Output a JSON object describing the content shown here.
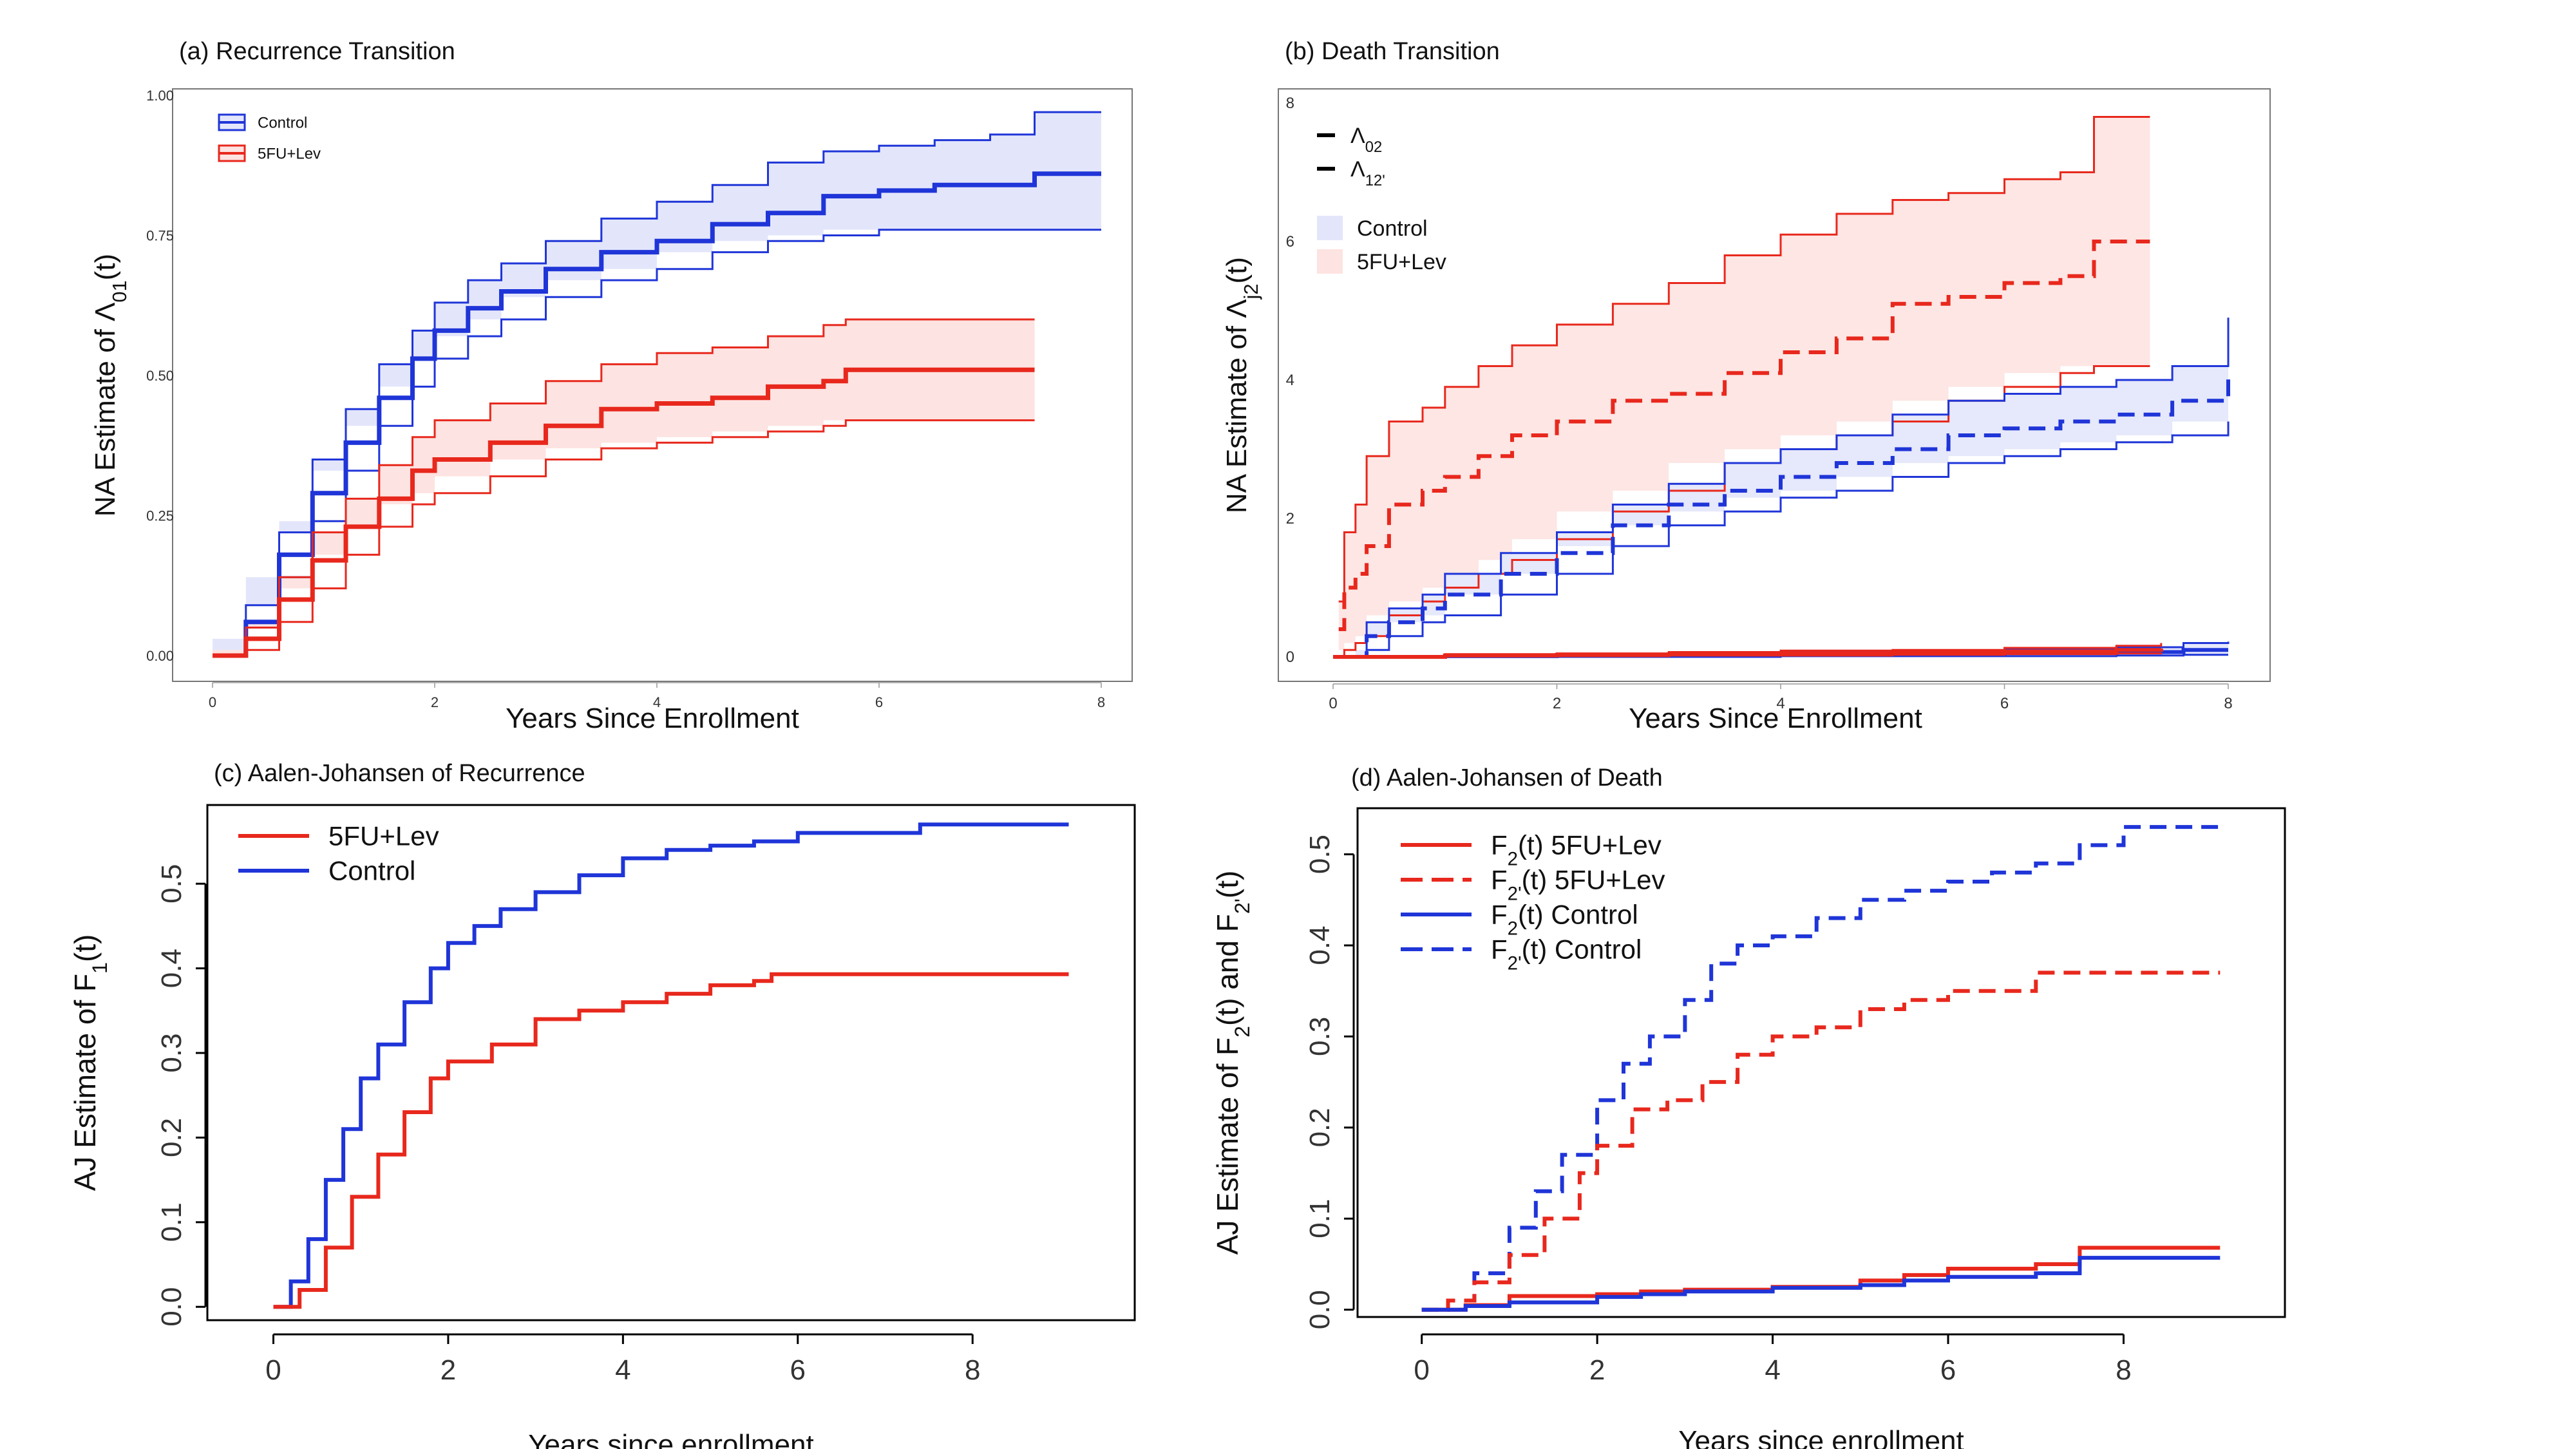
{
  "colors": {
    "control": "#1f35d8",
    "treatment": "#e8281d",
    "control_fill": "#e3e6fb",
    "treatment_fill": "#fde3e1"
  },
  "chart_data": [
    {
      "id": "a",
      "type": "line",
      "title": "(a) Recurrence Transition",
      "xlabel": "Years Since Enrollment",
      "ylabel_main": "NA Estimate of Λ",
      "ylabel_sub": "01",
      "ylabel_suffix": "(t)",
      "xlim": [
        0,
        8
      ],
      "ylim": [
        0,
        1
      ],
      "xticks": [
        0,
        2,
        4,
        6,
        8
      ],
      "yticks": [
        0,
        0.25,
        0.5,
        0.75,
        1
      ],
      "ytick_labels": [
        "0.00",
        "0.25",
        "0.50",
        "0.75",
        "1.00"
      ],
      "legend": [
        {
          "label": "Control",
          "series": "control",
          "kind": "band"
        },
        {
          "label": "5FU+Lev",
          "series": "treatment",
          "kind": "band"
        }
      ],
      "series": [
        {
          "name": "Control",
          "color_key": "control",
          "dash": false,
          "step": true,
          "band": true,
          "x": [
            0,
            0.3,
            0.6,
            0.9,
            1.2,
            1.5,
            1.8,
            2.0,
            2.3,
            2.6,
            3.0,
            3.5,
            4.0,
            4.5,
            5.0,
            5.5,
            6.0,
            6.5,
            7.0,
            7.4,
            8.0
          ],
          "y": [
            0,
            0.06,
            0.18,
            0.29,
            0.38,
            0.46,
            0.53,
            0.58,
            0.62,
            0.65,
            0.69,
            0.72,
            0.74,
            0.77,
            0.79,
            0.82,
            0.83,
            0.84,
            0.84,
            0.86,
            0.86
          ],
          "lower": [
            0,
            0.03,
            0.14,
            0.24,
            0.33,
            0.41,
            0.48,
            0.53,
            0.57,
            0.6,
            0.64,
            0.67,
            0.69,
            0.72,
            0.74,
            0.75,
            0.76,
            0.76,
            0.76,
            0.76,
            0.76
          ],
          "upper": [
            0,
            0.09,
            0.22,
            0.35,
            0.44,
            0.52,
            0.58,
            0.63,
            0.67,
            0.7,
            0.74,
            0.78,
            0.81,
            0.84,
            0.88,
            0.9,
            0.91,
            0.92,
            0.93,
            0.97,
            0.97
          ]
        },
        {
          "name": "5FU+Lev",
          "color_key": "treatment",
          "dash": false,
          "step": true,
          "band": true,
          "x": [
            0,
            0.3,
            0.6,
            0.9,
            1.2,
            1.5,
            1.8,
            2.0,
            2.5,
            3.0,
            3.5,
            4.0,
            4.5,
            5.0,
            5.5,
            5.7,
            7.4
          ],
          "y": [
            0,
            0.03,
            0.1,
            0.17,
            0.23,
            0.28,
            0.33,
            0.35,
            0.38,
            0.41,
            0.44,
            0.45,
            0.46,
            0.48,
            0.49,
            0.51,
            0.51
          ],
          "lower": [
            0,
            0.01,
            0.06,
            0.12,
            0.18,
            0.23,
            0.27,
            0.29,
            0.32,
            0.35,
            0.37,
            0.38,
            0.39,
            0.4,
            0.41,
            0.42,
            0.42
          ],
          "upper": [
            0,
            0.05,
            0.14,
            0.22,
            0.28,
            0.34,
            0.39,
            0.42,
            0.45,
            0.49,
            0.52,
            0.54,
            0.55,
            0.57,
            0.59,
            0.6,
            0.6
          ]
        }
      ]
    },
    {
      "id": "b",
      "type": "line",
      "title": "(b) Death Transition",
      "xlabel": "Years Since Enrollment",
      "ylabel_main": "NA Estimate of Λ",
      "ylabel_sub": "j2",
      "ylabel_suffix": "(t)",
      "xlim": [
        0,
        8
      ],
      "ylim": [
        0,
        8
      ],
      "xticks": [
        0,
        2,
        4,
        6,
        8
      ],
      "yticks": [
        0,
        2,
        4,
        6,
        8
      ],
      "ytick_labels": [
        "0",
        "2",
        "4",
        "6",
        "8"
      ],
      "legend": [
        {
          "label": "Λ",
          "sub": "02",
          "kind": "solid-line"
        },
        {
          "label": "Λ",
          "sub": "12'",
          "kind": "dash-line"
        },
        {
          "label": "Control",
          "series": "control",
          "kind": "fill"
        },
        {
          "label": "5FU+Lev",
          "series": "treatment",
          "kind": "fill"
        }
      ],
      "series": [
        {
          "name": "Lambda12' 5FU+Lev",
          "color_key": "treatment",
          "dash": true,
          "step": true,
          "band": true,
          "x": [
            0.05,
            0.1,
            0.2,
            0.3,
            0.5,
            0.8,
            1.0,
            1.3,
            1.6,
            2.0,
            2.5,
            3.0,
            3.5,
            4.0,
            4.5,
            5.0,
            5.5,
            6.0,
            6.5,
            6.8,
            7.3
          ],
          "y": [
            0.4,
            1.0,
            1.2,
            1.6,
            2.2,
            2.4,
            2.6,
            2.9,
            3.2,
            3.4,
            3.7,
            3.8,
            4.1,
            4.4,
            4.6,
            5.1,
            5.2,
            5.4,
            5.5,
            6.0,
            6.0
          ],
          "lower": [
            0,
            0.1,
            0.2,
            0.3,
            0.6,
            0.8,
            1.0,
            1.2,
            1.4,
            1.7,
            2.1,
            2.4,
            2.8,
            3.0,
            3.2,
            3.4,
            3.7,
            3.9,
            4.1,
            4.2,
            4.2
          ],
          "upper": [
            0.8,
            1.8,
            2.2,
            2.9,
            3.4,
            3.6,
            3.9,
            4.2,
            4.5,
            4.8,
            5.1,
            5.4,
            5.8,
            6.1,
            6.4,
            6.6,
            6.7,
            6.9,
            7.0,
            7.8,
            7.8
          ]
        },
        {
          "name": "Lambda12' Control",
          "color_key": "control",
          "dash": true,
          "step": true,
          "band": true,
          "x": [
            0.2,
            0.3,
            0.5,
            0.8,
            1.0,
            1.5,
            2.0,
            2.5,
            3.0,
            3.5,
            4.0,
            4.5,
            5.0,
            5.5,
            6.0,
            6.5,
            7.0,
            7.5,
            8.0
          ],
          "y": [
            0,
            0.3,
            0.5,
            0.7,
            0.9,
            1.2,
            1.5,
            1.9,
            2.2,
            2.4,
            2.6,
            2.8,
            3.0,
            3.2,
            3.3,
            3.4,
            3.5,
            3.7,
            4.1
          ],
          "lower": [
            0,
            0.1,
            0.3,
            0.5,
            0.6,
            0.9,
            1.2,
            1.6,
            1.9,
            2.1,
            2.3,
            2.4,
            2.6,
            2.8,
            2.9,
            3.0,
            3.1,
            3.2,
            3.4
          ],
          "upper": [
            0,
            0.5,
            0.7,
            0.9,
            1.2,
            1.5,
            1.8,
            2.2,
            2.5,
            2.8,
            3.0,
            3.2,
            3.5,
            3.7,
            3.8,
            3.9,
            4.0,
            4.2,
            4.9
          ]
        },
        {
          "name": "Lambda02 Control",
          "color_key": "control",
          "dash": false,
          "step": true,
          "band": true,
          "x": [
            0,
            1,
            2,
            3,
            4,
            5,
            6,
            7,
            7.6,
            8.0
          ],
          "y": [
            0,
            0.01,
            0.02,
            0.03,
            0.04,
            0.05,
            0.06,
            0.07,
            0.1,
            0.1
          ],
          "lower": [
            0,
            0,
            0,
            0,
            0.01,
            0.01,
            0.01,
            0.02,
            0.03,
            0.03
          ],
          "upper": [
            0,
            0.02,
            0.04,
            0.05,
            0.07,
            0.09,
            0.11,
            0.14,
            0.2,
            0.22
          ]
        },
        {
          "name": "Lambda02 5FU+Lev",
          "color_key": "treatment",
          "dash": false,
          "step": true,
          "band": true,
          "x": [
            0,
            1,
            2,
            3,
            4,
            5,
            6,
            7,
            7.4
          ],
          "y": [
            0,
            0.02,
            0.03,
            0.04,
            0.05,
            0.06,
            0.08,
            0.1,
            0.12
          ],
          "lower": [
            0,
            0.01,
            0.01,
            0.02,
            0.02,
            0.03,
            0.04,
            0.05,
            0.06
          ],
          "upper": [
            0,
            0.04,
            0.05,
            0.07,
            0.09,
            0.1,
            0.13,
            0.16,
            0.2
          ]
        }
      ]
    },
    {
      "id": "c",
      "type": "line",
      "title": "(c) Aalen-Johansen of Recurrence",
      "xlabel": "Years since enrollment",
      "ylabel_main": "AJ Estimate of F",
      "ylabel_sub": "1",
      "ylabel_suffix": "(t)",
      "xlim": [
        -0.35,
        9.45
      ],
      "ylim": [
        -0.012,
        0.574
      ],
      "xticks": [
        0,
        2,
        4,
        6,
        8
      ],
      "yticks": [
        0,
        0.1,
        0.2,
        0.3,
        0.4,
        0.5
      ],
      "ytick_labels": [
        "0.0",
        "0.1",
        "0.2",
        "0.3",
        "0.4",
        "0.5"
      ],
      "legend": [
        {
          "label": "5FU+Lev",
          "series": "treatment",
          "kind": "solid-line"
        },
        {
          "label": "Control",
          "series": "control",
          "kind": "solid-line"
        }
      ],
      "series": [
        {
          "name": "Control",
          "color_key": "control",
          "dash": false,
          "step": true,
          "band": false,
          "x": [
            0,
            0.2,
            0.4,
            0.6,
            0.8,
            1.0,
            1.2,
            1.5,
            1.8,
            2.0,
            2.3,
            2.6,
            3.0,
            3.5,
            4.0,
            4.5,
            5.0,
            5.5,
            6.0,
            7.0,
            7.4,
            9.1
          ],
          "y": [
            0,
            0.03,
            0.08,
            0.15,
            0.21,
            0.27,
            0.31,
            0.36,
            0.4,
            0.43,
            0.45,
            0.47,
            0.49,
            0.51,
            0.53,
            0.54,
            0.545,
            0.55,
            0.56,
            0.56,
            0.57,
            0.57
          ]
        },
        {
          "name": "5FU+Lev",
          "color_key": "treatment",
          "dash": false,
          "step": true,
          "band": false,
          "x": [
            0,
            0.3,
            0.6,
            0.9,
            1.2,
            1.5,
            1.8,
            2.0,
            2.5,
            3.0,
            3.5,
            4.0,
            4.5,
            5.0,
            5.5,
            5.7,
            9.1
          ],
          "y": [
            0,
            0.02,
            0.07,
            0.13,
            0.18,
            0.23,
            0.27,
            0.29,
            0.31,
            0.34,
            0.35,
            0.36,
            0.37,
            0.38,
            0.385,
            0.393,
            0.393
          ]
        }
      ]
    },
    {
      "id": "d",
      "type": "line",
      "title": "(d) Aalen-Johansen of Death",
      "xlabel": "Years since enrollment",
      "ylabel_main": "AJ Estimate of F",
      "ylabel_sub": "2",
      "ylabel_mid": "(t) and F",
      "ylabel_sub2": "2'",
      "ylabel_suffix": "(t)",
      "xlim": [
        -0.35,
        9.45
      ],
      "ylim": [
        -0.008,
        0.54
      ],
      "xticks": [
        0,
        2,
        4,
        6,
        8
      ],
      "yticks": [
        0,
        0.1,
        0.2,
        0.3,
        0.4,
        0.5
      ],
      "ytick_labels": [
        "0.0",
        "0.1",
        "0.2",
        "0.3",
        "0.4",
        "0.5"
      ],
      "legend": [
        {
          "label": "F",
          "sub": "2",
          "rest": "(t) 5FU+Lev",
          "series": "treatment",
          "kind": "solid-line"
        },
        {
          "label": "F",
          "sub": "2'",
          "rest": "(t) 5FU+Lev",
          "series": "treatment",
          "kind": "dash-line"
        },
        {
          "label": "F",
          "sub": "2",
          "rest": "(t) Control",
          "series": "control",
          "kind": "solid-line"
        },
        {
          "label": "F",
          "sub": "2'",
          "rest": "(t) Control",
          "series": "control",
          "kind": "dash-line"
        }
      ],
      "series": [
        {
          "name": "F2' Control",
          "color_key": "control",
          "dash": true,
          "step": true,
          "band": false,
          "x": [
            0,
            0.3,
            0.6,
            1.0,
            1.3,
            1.6,
            2.0,
            2.3,
            2.6,
            3.0,
            3.3,
            3.6,
            4.0,
            4.5,
            5.0,
            5.5,
            6.0,
            6.5,
            7.0,
            7.5,
            8.0,
            9.1
          ],
          "y": [
            0,
            0.01,
            0.04,
            0.09,
            0.13,
            0.17,
            0.23,
            0.27,
            0.3,
            0.34,
            0.38,
            0.4,
            0.41,
            0.43,
            0.45,
            0.46,
            0.47,
            0.48,
            0.49,
            0.51,
            0.53,
            0.53
          ]
        },
        {
          "name": "F2' 5FU+Lev",
          "color_key": "treatment",
          "dash": true,
          "step": true,
          "band": false,
          "x": [
            0,
            0.3,
            0.6,
            1.0,
            1.4,
            1.8,
            2.0,
            2.4,
            2.8,
            3.2,
            3.6,
            4.0,
            4.5,
            5.0,
            5.5,
            6.0,
            6.5,
            7.0,
            9.1
          ],
          "y": [
            0,
            0.01,
            0.03,
            0.06,
            0.1,
            0.15,
            0.18,
            0.22,
            0.23,
            0.25,
            0.28,
            0.3,
            0.31,
            0.33,
            0.34,
            0.35,
            0.35,
            0.37,
            0.37
          ]
        },
        {
          "name": "F2 5FU+Lev",
          "color_key": "treatment",
          "dash": false,
          "step": true,
          "band": false,
          "x": [
            0,
            0.5,
            1.0,
            2.0,
            2.5,
            3.0,
            4.0,
            5.0,
            5.5,
            6.0,
            7.0,
            7.5,
            9.1
          ],
          "y": [
            0,
            0.005,
            0.015,
            0.017,
            0.02,
            0.022,
            0.025,
            0.032,
            0.038,
            0.045,
            0.05,
            0.068,
            0.068
          ]
        },
        {
          "name": "F2 Control",
          "color_key": "control",
          "dash": false,
          "step": true,
          "band": false,
          "x": [
            0,
            0.5,
            1.0,
            2.0,
            2.5,
            3.0,
            4.0,
            5.0,
            5.5,
            6.0,
            7.0,
            7.5,
            9.1
          ],
          "y": [
            0,
            0.004,
            0.008,
            0.014,
            0.017,
            0.02,
            0.024,
            0.027,
            0.032,
            0.036,
            0.04,
            0.057,
            0.057
          ]
        }
      ]
    }
  ]
}
